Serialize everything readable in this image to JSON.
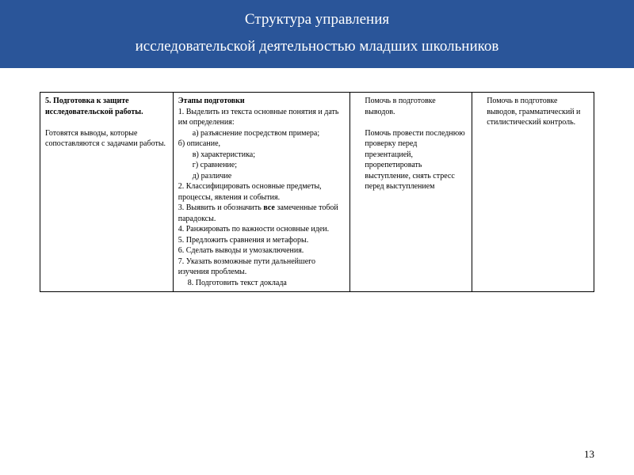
{
  "header": {
    "line1": "Структура управления",
    "line2": "исследовательской деятельностью младших школьников"
  },
  "table": {
    "background_color": "#ffffff",
    "border_color": "#000000",
    "font_size": 10,
    "columns": [
      {
        "width_pct": 24
      },
      {
        "width_pct": 32
      },
      {
        "width_pct": 22
      },
      {
        "width_pct": 22
      }
    ],
    "col1": {
      "title_num": "5.",
      "title_text": "Подготовка к защите исследовательской работы.",
      "body": "Готовятся выводы, которые сопоставляются с задачами работы."
    },
    "col2": {
      "heading": "Этапы подготовки",
      "item1_lead": "1. Выделить из текста основные понятия и дать им определения:",
      "item1_a": "а) разъяснение посредством примера;",
      "item1_b": "б) описание,",
      "item1_v": "в) характеристика;",
      "item1_g": "г) сравнение;",
      "item1_d": "д) различие",
      "item2": "2. Классифицировать основные предметы, процессы, явления и события.",
      "item3_pre": "3. Выявить и обозначить ",
      "item3_bold": "все",
      "item3_post": " замеченные тобой парадоксы.",
      "item4": "4. Ранжировать по важности основные идеи.",
      "item5": " 5. Предложить сравнения и метафоры.",
      "item6": "6. Сделать выводы и умозаключения.",
      "item7": "7. Указать возможные пути дальнейшего изучения проблемы.",
      "item8": "8. Подготовить текст доклада"
    },
    "col3": {
      "p1": "Помочь в подготовке выводов.",
      "p2": "Помочь провести последнюю проверку перед презентацией, прорепетировать выступление, снять стресс перед выступлением"
    },
    "col4": {
      "p1": "Помочь в подготовке выводов, грамматический и стилистический контроль."
    }
  },
  "page_number": "13",
  "colors": {
    "header_bg": "#2a5599",
    "header_text": "#ffffff",
    "page_bg": "#ffffff",
    "text": "#000000",
    "border": "#000000"
  },
  "typography": {
    "font_family": "Times New Roman",
    "header_fontsize": 19,
    "cell_fontsize": 10,
    "page_number_fontsize": 13
  }
}
